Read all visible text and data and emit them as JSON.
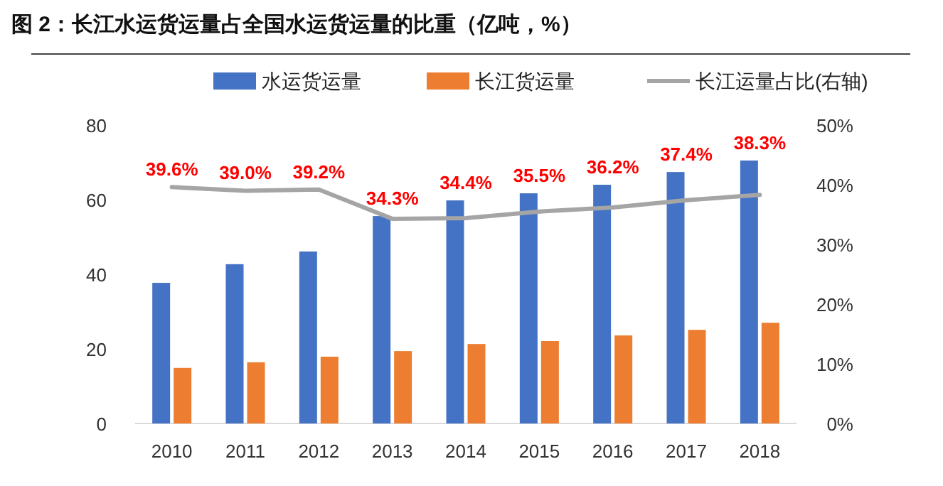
{
  "chart_data": {
    "type": "bar",
    "title": "图 2：长江水运货运量占全国水运货运量的比重（亿吨，%）",
    "categories": [
      "2010",
      "2011",
      "2012",
      "2013",
      "2014",
      "2015",
      "2016",
      "2017",
      "2018"
    ],
    "series": [
      {
        "name": "水运货运量",
        "color": "#4472c4",
        "values": [
          37.7,
          42.7,
          46.1,
          55.6,
          59.8,
          61.7,
          64.0,
          67.4,
          70.5
        ]
      },
      {
        "name": "长江货运量",
        "color": "#ed7d31",
        "values": [
          14.9,
          16.4,
          17.9,
          19.4,
          21.3,
          22.1,
          23.6,
          25.1,
          27.0
        ]
      },
      {
        "name": "长江运量占比(右轴)",
        "type": "line",
        "axis": "y2",
        "color": "#a5a5a5",
        "values": [
          39.6,
          39.0,
          39.2,
          34.3,
          34.4,
          35.5,
          36.2,
          37.4,
          38.3
        ],
        "value_labels": [
          "39.6%",
          "39.0%",
          "39.2%",
          "34.3%",
          "34.4%",
          "35.5%",
          "36.2%",
          "37.4%",
          "38.3%"
        ]
      }
    ],
    "ylim": [
      0,
      80
    ],
    "yticks": [
      0,
      20,
      40,
      60,
      80
    ],
    "y2lim": [
      0,
      50
    ],
    "y2ticks": [
      {
        "value": 0,
        "label": "0%"
      },
      {
        "value": 10,
        "label": "10%"
      },
      {
        "value": 20,
        "label": "20%"
      },
      {
        "value": 30,
        "label": "30%"
      },
      {
        "value": 40,
        "label": "40%"
      },
      {
        "value": 50,
        "label": "50%"
      }
    ],
    "legend": "top",
    "grid": false
  }
}
